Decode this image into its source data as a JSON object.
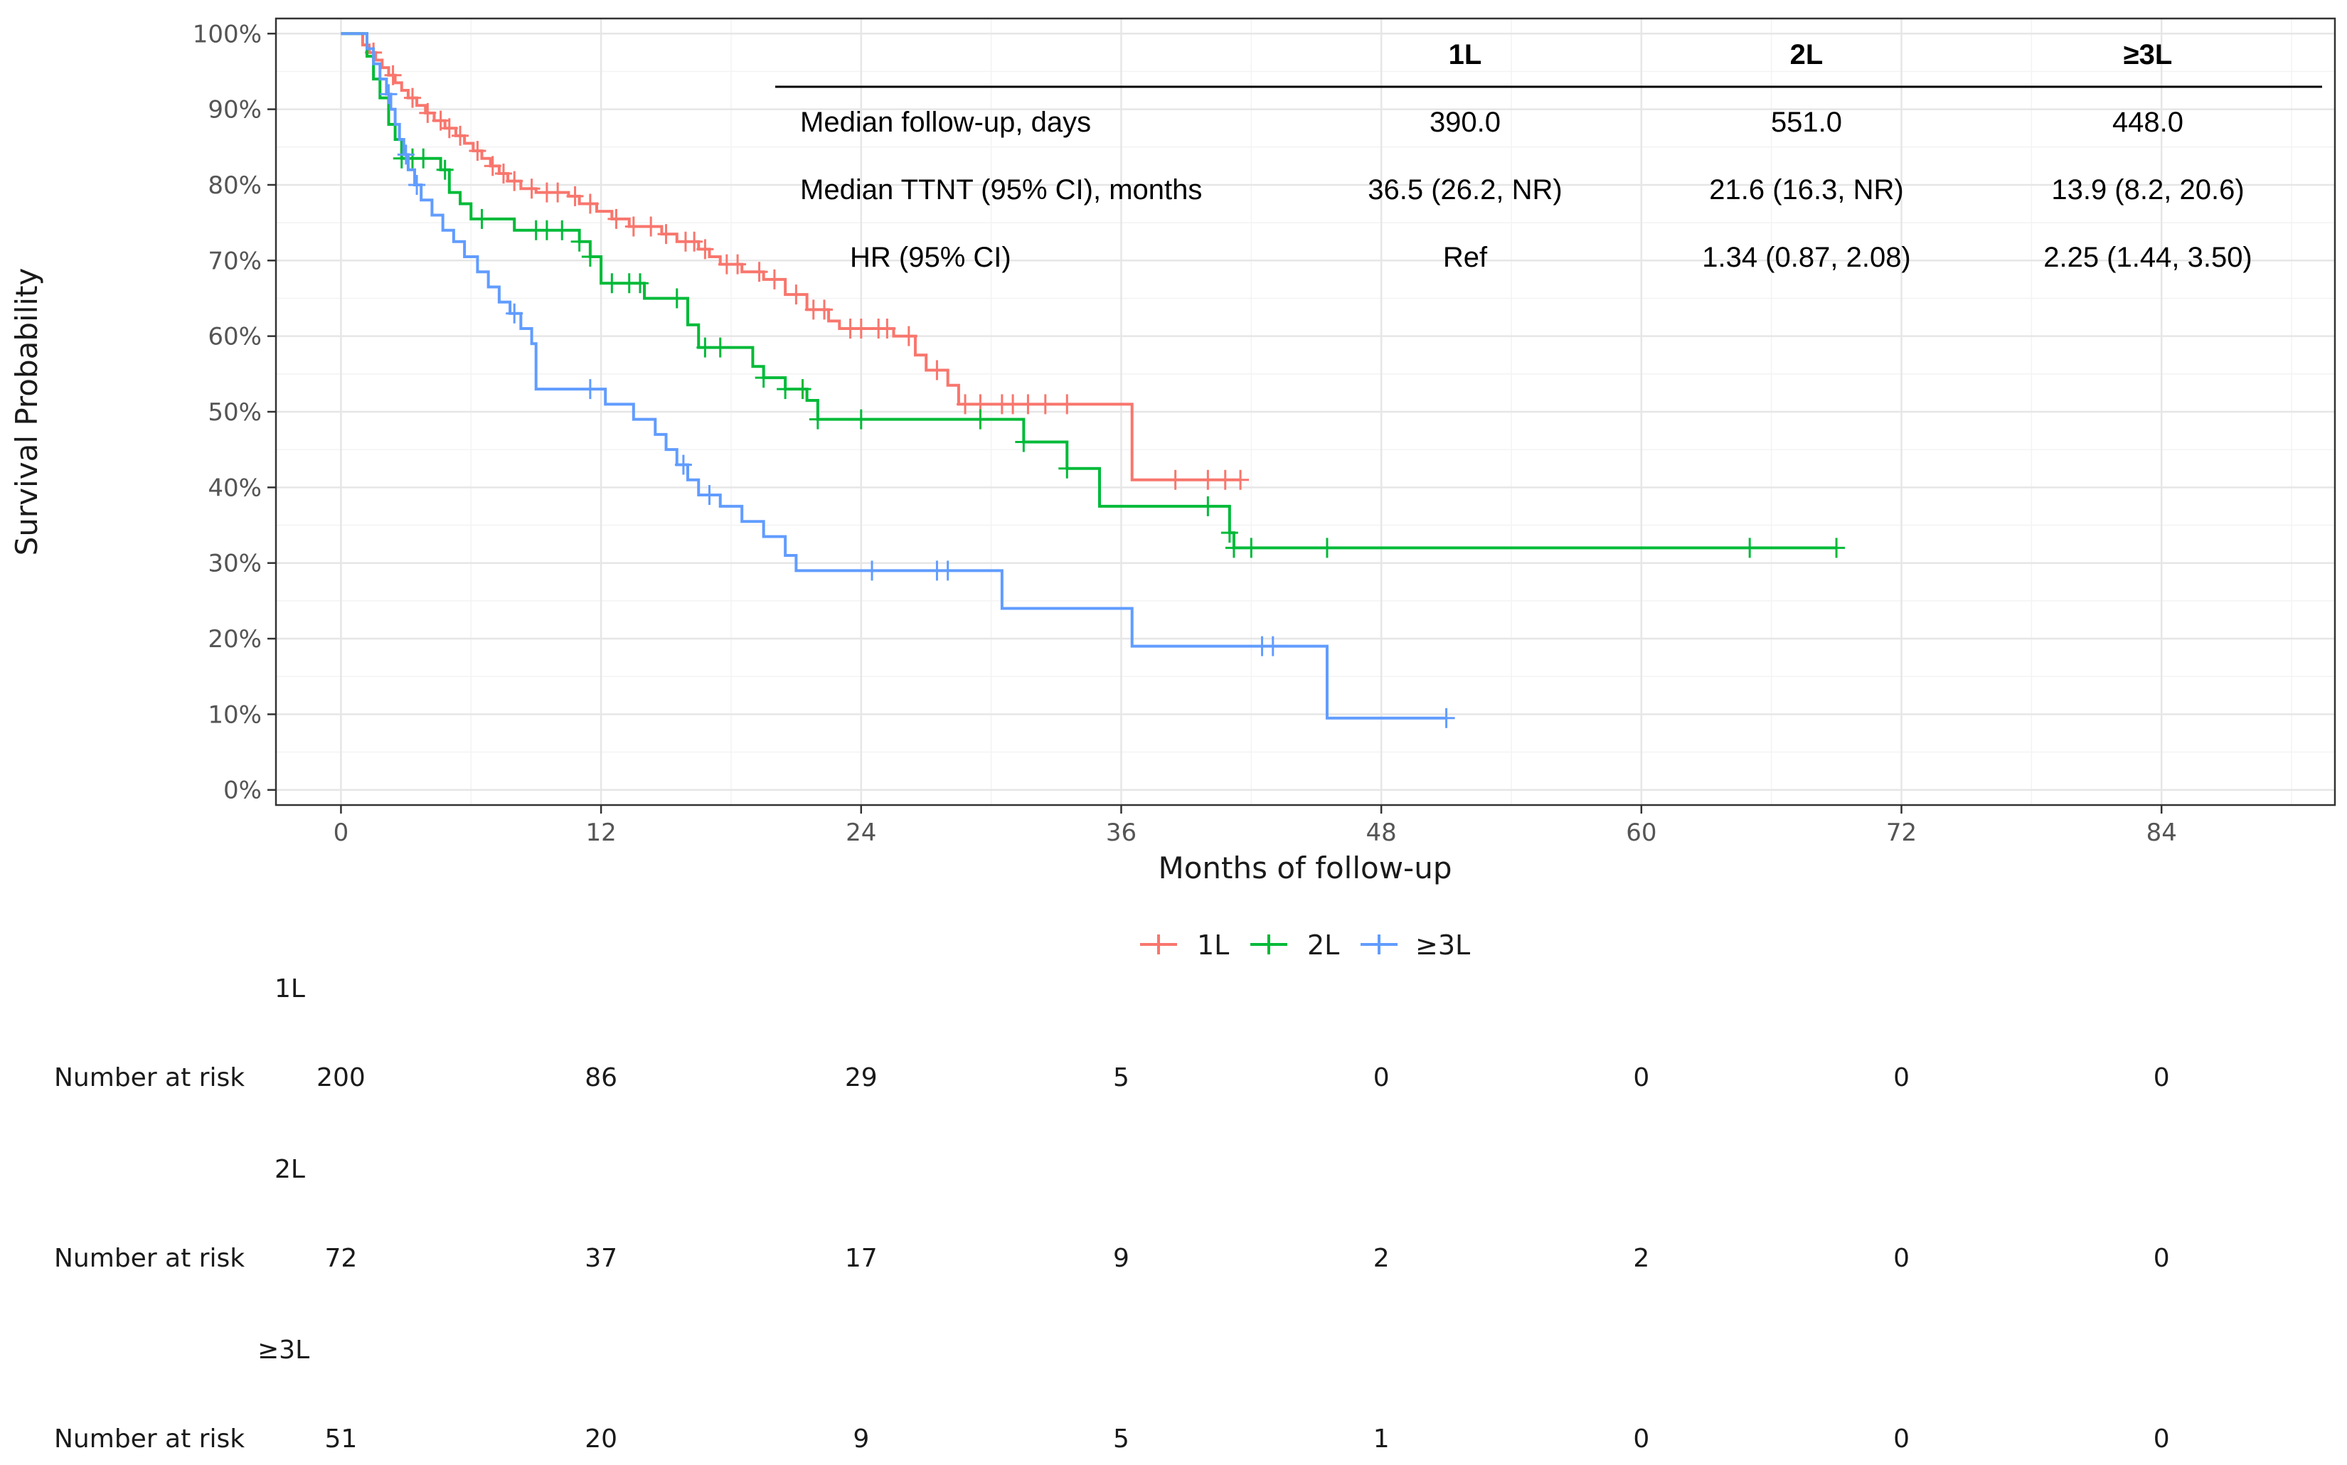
{
  "chart_data": {
    "type": "line",
    "subtype": "kaplan-meier",
    "xlabel": "Months of follow-up",
    "ylabel": "Survival Probability",
    "xlim": [
      -3,
      92
    ],
    "ylim": [
      -0.02,
      1.02
    ],
    "x_ticks": [
      0,
      12,
      24,
      36,
      48,
      60,
      72,
      84
    ],
    "x_tick_labels": [
      "0",
      "12",
      "24",
      "36",
      "48",
      "60",
      "72",
      "84"
    ],
    "y_ticks": [
      0,
      0.1,
      0.2,
      0.3,
      0.4,
      0.5,
      0.6,
      0.7,
      0.8,
      0.9,
      1.0
    ],
    "y_tick_labels": [
      "0%",
      "10%",
      "20%",
      "30%",
      "40%",
      "50%",
      "60%",
      "70%",
      "80%",
      "90%",
      "100%"
    ],
    "grid": true,
    "legend": {
      "position": "bottom",
      "entries": [
        "1L",
        "2L",
        "≥3L"
      ]
    },
    "series": [
      {
        "name": "1L",
        "color": "#F8766D",
        "steps": [
          [
            0,
            1.0
          ],
          [
            0.8,
            1.0
          ],
          [
            1.0,
            0.985
          ],
          [
            1.3,
            0.975
          ],
          [
            1.6,
            0.965
          ],
          [
            1.9,
            0.955
          ],
          [
            2.2,
            0.945
          ],
          [
            2.5,
            0.935
          ],
          [
            2.8,
            0.925
          ],
          [
            3.1,
            0.915
          ],
          [
            3.5,
            0.905
          ],
          [
            3.9,
            0.895
          ],
          [
            4.3,
            0.885
          ],
          [
            4.8,
            0.875
          ],
          [
            5.3,
            0.865
          ],
          [
            5.7,
            0.855
          ],
          [
            6.1,
            0.845
          ],
          [
            6.5,
            0.835
          ],
          [
            6.9,
            0.825
          ],
          [
            7.3,
            0.815
          ],
          [
            7.7,
            0.805
          ],
          [
            8.3,
            0.795
          ],
          [
            9.0,
            0.79
          ],
          [
            10.5,
            0.785
          ],
          [
            11.0,
            0.775
          ],
          [
            11.8,
            0.765
          ],
          [
            12.5,
            0.755
          ],
          [
            13.3,
            0.745
          ],
          [
            14.8,
            0.735
          ],
          [
            15.5,
            0.725
          ],
          [
            16.5,
            0.715
          ],
          [
            17.0,
            0.705
          ],
          [
            17.5,
            0.695
          ],
          [
            18.5,
            0.685
          ],
          [
            19.5,
            0.675
          ],
          [
            20.5,
            0.655
          ],
          [
            21.5,
            0.635
          ],
          [
            22.5,
            0.62
          ],
          [
            23.0,
            0.61
          ],
          [
            25.5,
            0.6
          ],
          [
            26.5,
            0.575
          ],
          [
            27.0,
            0.555
          ],
          [
            28.0,
            0.535
          ],
          [
            28.5,
            0.51
          ],
          [
            36.5,
            0.51
          ],
          [
            36.5,
            0.41
          ],
          [
            41.5,
            0.41
          ]
        ],
        "censor_times": [
          1.5,
          2.4,
          3.3,
          4.0,
          4.6,
          5.0,
          5.5,
          6.3,
          7.0,
          7.5,
          8.0,
          8.8,
          9.5,
          10.0,
          10.8,
          11.5,
          12.7,
          13.5,
          14.3,
          15.0,
          15.9,
          16.3,
          16.8,
          17.8,
          18.3,
          19.3,
          20.0,
          21.0,
          21.8,
          22.3,
          23.5,
          24.0,
          24.8,
          25.2,
          26.2,
          27.5,
          28.8,
          29.5,
          30.5,
          31.0,
          31.7,
          32.5,
          33.5,
          38.5,
          40.0,
          40.8,
          41.5
        ]
      },
      {
        "name": "2L",
        "color": "#00BA38",
        "steps": [
          [
            0,
            1.0
          ],
          [
            0.8,
            1.0
          ],
          [
            1.2,
            0.97
          ],
          [
            1.5,
            0.94
          ],
          [
            1.8,
            0.915
          ],
          [
            2.2,
            0.88
          ],
          [
            2.5,
            0.86
          ],
          [
            2.8,
            0.835
          ],
          [
            4.6,
            0.82
          ],
          [
            5.0,
            0.79
          ],
          [
            5.5,
            0.775
          ],
          [
            6.0,
            0.755
          ],
          [
            8.0,
            0.74
          ],
          [
            11.0,
            0.725
          ],
          [
            11.5,
            0.705
          ],
          [
            12.0,
            0.67
          ],
          [
            13.0,
            0.67
          ],
          [
            14.0,
            0.65
          ],
          [
            16.0,
            0.615
          ],
          [
            16.5,
            0.585
          ],
          [
            19.0,
            0.56
          ],
          [
            19.5,
            0.545
          ],
          [
            20.5,
            0.53
          ],
          [
            21.5,
            0.515
          ],
          [
            22.0,
            0.49
          ],
          [
            31.5,
            0.49
          ],
          [
            31.5,
            0.46
          ],
          [
            33.5,
            0.425
          ],
          [
            35.0,
            0.375
          ],
          [
            41.0,
            0.375
          ],
          [
            41.0,
            0.34
          ],
          [
            41.2,
            0.32
          ],
          [
            69.0,
            0.32
          ]
        ],
        "censor_times": [
          2.8,
          3.3,
          3.8,
          4.8,
          6.5,
          9.0,
          9.5,
          10.2,
          11.0,
          11.5,
          12.5,
          13.3,
          13.8,
          15.5,
          16.8,
          17.5,
          19.5,
          20.5,
          21.3,
          22.0,
          24.0,
          29.5,
          31.5,
          33.5,
          40.0,
          41.0,
          41.2,
          42.0,
          45.5,
          65.0,
          69.0
        ]
      },
      {
        "name": "≥3L",
        "color": "#619CFF",
        "steps": [
          [
            0,
            1.0
          ],
          [
            0.8,
            1.0
          ],
          [
            1.2,
            0.98
          ],
          [
            1.5,
            0.96
          ],
          [
            1.8,
            0.94
          ],
          [
            2.1,
            0.92
          ],
          [
            2.3,
            0.9
          ],
          [
            2.5,
            0.88
          ],
          [
            2.7,
            0.86
          ],
          [
            2.9,
            0.84
          ],
          [
            3.1,
            0.82
          ],
          [
            3.4,
            0.8
          ],
          [
            3.7,
            0.78
          ],
          [
            4.2,
            0.76
          ],
          [
            4.7,
            0.74
          ],
          [
            5.2,
            0.725
          ],
          [
            5.7,
            0.705
          ],
          [
            6.3,
            0.685
          ],
          [
            6.8,
            0.665
          ],
          [
            7.3,
            0.645
          ],
          [
            7.8,
            0.63
          ],
          [
            8.3,
            0.61
          ],
          [
            8.8,
            0.59
          ],
          [
            9.0,
            0.55
          ],
          [
            9.0,
            0.53
          ],
          [
            12.0,
            0.53
          ],
          [
            12.2,
            0.51
          ],
          [
            13.5,
            0.49
          ],
          [
            14.5,
            0.47
          ],
          [
            15.0,
            0.45
          ],
          [
            15.5,
            0.43
          ],
          [
            16.0,
            0.41
          ],
          [
            16.5,
            0.39
          ],
          [
            17.5,
            0.375
          ],
          [
            18.5,
            0.355
          ],
          [
            19.5,
            0.335
          ],
          [
            20.5,
            0.31
          ],
          [
            21.0,
            0.29
          ],
          [
            30.5,
            0.29
          ],
          [
            30.5,
            0.24
          ],
          [
            36.5,
            0.24
          ],
          [
            36.5,
            0.19
          ],
          [
            45.5,
            0.19
          ],
          [
            45.5,
            0.095
          ],
          [
            51.0,
            0.095
          ]
        ],
        "censor_times": [
          2.2,
          3.0,
          3.5,
          8.0,
          11.5,
          15.8,
          17.0,
          24.5,
          27.5,
          28.0,
          42.5,
          43.0,
          51.0
        ]
      }
    ]
  },
  "stats_table": {
    "headers": [
      "1L",
      "2L",
      "≥3L"
    ],
    "rows": [
      {
        "label": "Median follow-up, days",
        "values": [
          "390.0",
          "551.0",
          "448.0"
        ]
      },
      {
        "label": "Median TTNT (95% CI), months",
        "values": [
          "36.5 (26.2, NR)",
          "21.6 (16.3, NR)",
          "13.9 (8.2, 20.6)"
        ]
      },
      {
        "label": "HR (95% CI)",
        "values": [
          "Ref",
          "1.34 (0.87, 2.08)",
          "2.25 (1.44, 3.50)"
        ]
      }
    ]
  },
  "risk_table": {
    "row_label": "Number at risk",
    "times": [
      0,
      12,
      24,
      36,
      48,
      60,
      72,
      84
    ],
    "groups": [
      {
        "name": "1L",
        "counts": [
          "200",
          "86",
          "29",
          "5",
          "0",
          "0",
          "0",
          "0"
        ]
      },
      {
        "name": "2L",
        "counts": [
          "72",
          "37",
          "17",
          "9",
          "2",
          "2",
          "0",
          "0"
        ]
      },
      {
        "name": "≥3L",
        "counts": [
          "51",
          "20",
          "9",
          "5",
          "1",
          "0",
          "0",
          "0"
        ]
      }
    ]
  }
}
